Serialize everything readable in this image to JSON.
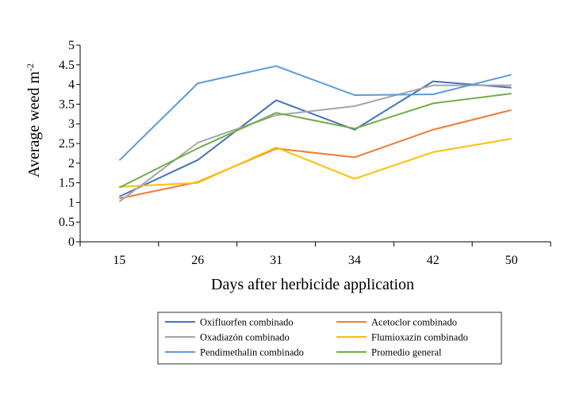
{
  "chart_data": {
    "type": "line",
    "title": "",
    "xlabel": "Days after herbicide application",
    "ylabel": "Average weed m",
    "ylabel_superscript": "-2",
    "categories": [
      "15",
      "26",
      "31",
      "34",
      "42",
      "50"
    ],
    "ylim": [
      0,
      5
    ],
    "yticks": [
      "0",
      "0.5",
      "1",
      "1.5",
      "2",
      "2.5",
      "3",
      "3.5",
      "4",
      "4.5",
      "5"
    ],
    "grid": false,
    "legend_position": "bottom",
    "series": [
      {
        "name": "Oxifluorfen combinado",
        "color": "#4472C4",
        "values": [
          1.15,
          2.08,
          3.6,
          2.85,
          4.08,
          3.92
        ]
      },
      {
        "name": "Acetoclor combinado",
        "color": "#ED7D31",
        "values": [
          1.1,
          1.52,
          2.37,
          2.15,
          2.85,
          3.35
        ]
      },
      {
        "name": "Oxadiazón combinado",
        "color": "#A5A5A5",
        "values": [
          1.02,
          2.52,
          3.22,
          3.45,
          3.98,
          3.98
        ]
      },
      {
        "name": "Flumioxazin combinado",
        "color": "#FFC000",
        "values": [
          1.4,
          1.5,
          2.4,
          1.6,
          2.28,
          2.62
        ]
      },
      {
        "name": "Pendimethalin combinado",
        "color": "#5B9BD5",
        "values": [
          2.07,
          4.03,
          4.47,
          3.73,
          3.75,
          4.25
        ]
      },
      {
        "name": "Promedio general",
        "color": "#70AD47",
        "values": [
          1.38,
          2.38,
          3.28,
          2.88,
          3.52,
          3.77
        ]
      }
    ]
  }
}
